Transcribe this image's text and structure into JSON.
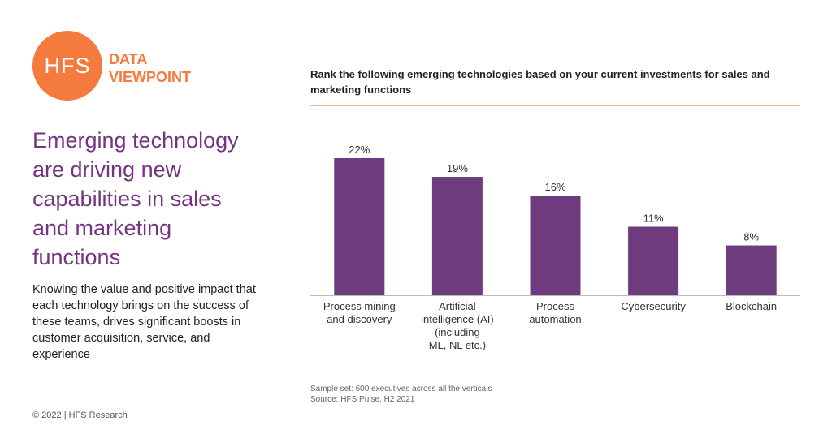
{
  "logo": {
    "mark": "HFS",
    "line1": "DATA",
    "line2": "VIEWPOINT",
    "color": "#f47a3d"
  },
  "headline": "Emerging technology are driving new capabilities in sales and marketing functions",
  "body": "Knowing the value and positive impact that each technology brings on the success of these teams, drives significant boosts in customer acquisition, service, and experience",
  "footer": {
    "copyright": "© 2022 | HFS Research"
  },
  "notes": {
    "sample": "Sample set: 600 executives across all the verticals",
    "source": "Source: HFS Pulse, H2 2021"
  },
  "chart_data": {
    "type": "bar",
    "title": "Rank the following emerging technologies based on your current investments for sales and marketing functions",
    "categories": [
      [
        "Process mining",
        "and discovery"
      ],
      [
        "Artificial",
        "intelligence (AI)",
        "(including",
        "ML, NL etc.)"
      ],
      [
        "Process",
        "automation"
      ],
      [
        "Cybersecurity"
      ],
      [
        "Blockchain"
      ]
    ],
    "values": [
      22,
      19,
      16,
      11,
      8
    ],
    "data_labels": [
      "22%",
      "19%",
      "16%",
      "11%",
      "8%"
    ],
    "unit": "%",
    "ylim": [
      0,
      22
    ],
    "grid": false,
    "bar_color": "#6f3b7f"
  }
}
